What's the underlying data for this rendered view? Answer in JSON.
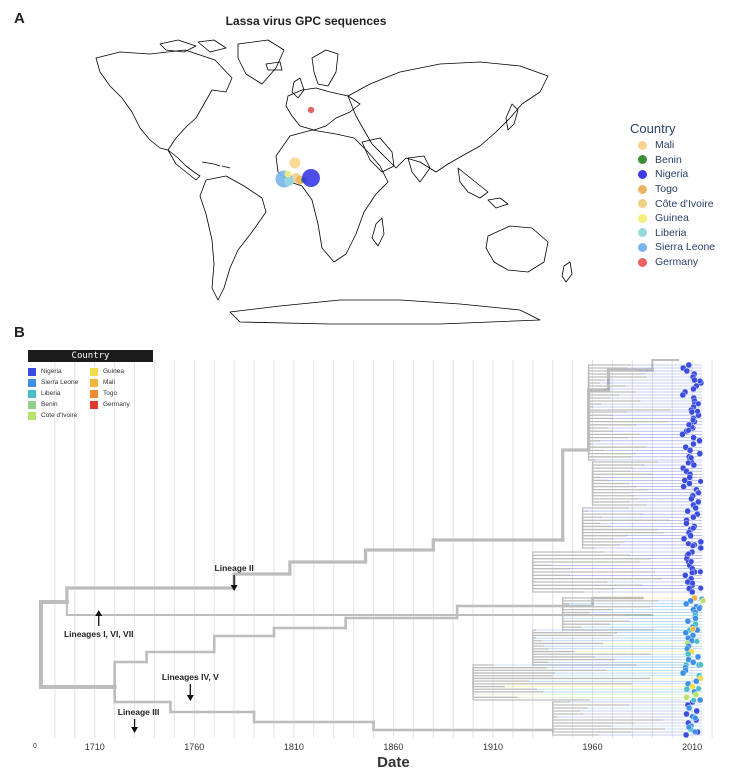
{
  "panel_a": {
    "letter": "A",
    "title": "Lassa virus GPC sequences",
    "legend_title": "Country",
    "legend": [
      {
        "label": "Mali",
        "color": "#f7d58b"
      },
      {
        "label": "Benin",
        "color": "#3c8c3c"
      },
      {
        "label": "Nigeria",
        "color": "#3a3ae8"
      },
      {
        "label": "Togo",
        "color": "#eab561"
      },
      {
        "label": "Côte d'Ivoire",
        "color": "#f2cf89"
      },
      {
        "label": "Guinea",
        "color": "#f6f07a"
      },
      {
        "label": "Liberia",
        "color": "#98d8e0"
      },
      {
        "label": "Sierra Leone",
        "color": "#7ab5ea"
      },
      {
        "label": "Germany",
        "color": "#ea6262"
      }
    ]
  },
  "panel_b": {
    "letter": "B",
    "legend_title": "Country",
    "legend_left": [
      {
        "label": "Nigeria",
        "color": "#3a4de0"
      },
      {
        "label": "Sierra Leone",
        "color": "#3f8fe8"
      },
      {
        "label": "Liberia",
        "color": "#48bfc8"
      },
      {
        "label": "Benin",
        "color": "#8fd18c"
      },
      {
        "label": "Cote d'Ivoire",
        "color": "#b8e46a"
      }
    ],
    "legend_right": [
      {
        "label": "Guinea",
        "color": "#f1dc4a"
      },
      {
        "label": "Mali",
        "color": "#f2b63c"
      },
      {
        "label": "Togo",
        "color": "#f08a34"
      },
      {
        "label": "Germany",
        "color": "#e03a2f"
      }
    ],
    "annotations": [
      {
        "id": "lineage-ii",
        "label": "Lineage II"
      },
      {
        "id": "lineages-i-vi-vii",
        "label": "Lineages I, VI, VII"
      },
      {
        "id": "lineages-iv-v",
        "label": "Lineages IV, V"
      },
      {
        "id": "lineage-iii",
        "label": "Lineage III"
      }
    ],
    "origin_label": "0",
    "x_label": "Date"
  },
  "chart_data": {
    "type": "phylogenetic-tree",
    "title": "",
    "xlabel": "Date",
    "x_ticks": [
      1710,
      1760,
      1810,
      1860,
      1910,
      1960,
      2010
    ],
    "xlim": [
      1680,
      2025
    ],
    "series": [
      {
        "name": "Nigeria",
        "region": "upper clade"
      },
      {
        "name": "Sierra Leone / Liberia / Guinea / Mali / Côte d'Ivoire",
        "region": "lower clade"
      }
    ]
  }
}
